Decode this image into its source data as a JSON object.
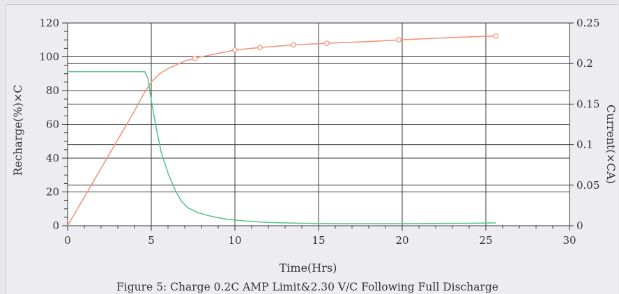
{
  "chart_data": {
    "type": "line",
    "title": "Figure 5: Charge 0.2C AMP Limit&2.30 V/C Following Full Discharge",
    "xlabel": "Time(Hrs)",
    "ylabel_left": "Recharge(%)×C",
    "ylabel_right": "Current(×CA)",
    "xlim": [
      0,
      30
    ],
    "ylim_left": [
      0,
      120
    ],
    "ylim_right": [
      0,
      0.25
    ],
    "x_ticks": [
      "0",
      "5",
      "10",
      "15",
      "20",
      "25",
      "30"
    ],
    "y_left_ticks": [
      "0",
      "20",
      "40",
      "60",
      "80",
      "100",
      "120"
    ],
    "y_right_ticks": [
      "0",
      "0.05",
      "0.1",
      "0.15",
      "0.2",
      "0.25"
    ],
    "grid": true,
    "series": [
      {
        "axis": "left",
        "color": "#f0957a",
        "x": [
          0,
          1,
          2,
          3,
          4,
          4.6,
          5,
          5.5,
          6,
          7,
          7.6,
          8,
          9,
          10,
          11.5,
          13.5,
          15.5,
          18,
          19.8,
          22,
          24,
          25.6
        ],
        "y": [
          0,
          17,
          34,
          51,
          68,
          79,
          85,
          90,
          93,
          97.5,
          99,
          100,
          102,
          104,
          105.5,
          107,
          108,
          109,
          110,
          111,
          111.8,
          112.3
        ],
        "markers_x": [
          7.6,
          10,
          11.5,
          13.5,
          15.5,
          19.8,
          25.6
        ]
      },
      {
        "axis": "right",
        "color": "#5cc48c",
        "x": [
          0,
          4.6,
          4.8,
          5,
          5.3,
          5.6,
          6,
          6.4,
          6.8,
          7.2,
          7.8,
          8.5,
          9.5,
          10.5,
          12,
          14,
          16,
          20,
          24,
          25.6
        ],
        "y": [
          0.19,
          0.19,
          0.182,
          0.155,
          0.12,
          0.09,
          0.065,
          0.045,
          0.03,
          0.022,
          0.016,
          0.012,
          0.008,
          0.006,
          0.004,
          0.003,
          0.0025,
          0.0025,
          0.003,
          0.0035
        ]
      }
    ]
  }
}
